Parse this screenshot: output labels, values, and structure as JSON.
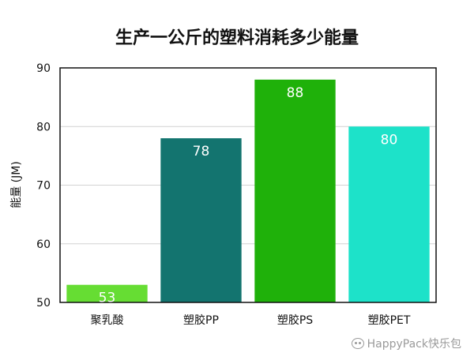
{
  "chart_data": {
    "type": "bar",
    "title": "生产一公斤的塑料消耗多少能量",
    "xlabel": "",
    "ylabel": "能量 (JM)",
    "categories": [
      "聚乳酸",
      "塑胶PP",
      "塑胶PS",
      "塑胶PET"
    ],
    "values": [
      53,
      78,
      88,
      80
    ],
    "bar_colors": [
      "#66dd33",
      "#13746f",
      "#1fb10a",
      "#1de2c9"
    ],
    "ylim": [
      50,
      90
    ],
    "yticks": [
      50,
      60,
      70,
      80,
      90
    ],
    "grid": true,
    "legend": "none"
  },
  "watermark": {
    "text": "HappyPack快乐包",
    "icon": "wechat-icon"
  }
}
